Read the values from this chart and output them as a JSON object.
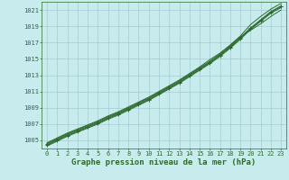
{
  "title": "Graphe pression niveau de la mer (hPa)",
  "bg_color": "#c8ecee",
  "grid_color": "#a0cdd0",
  "line_color": "#2d6a2d",
  "marker_color": "#2d6a2d",
  "ylim": [
    1004.0,
    1022.0
  ],
  "xlim": [
    -0.5,
    23.5
  ],
  "yticks": [
    1005,
    1007,
    1009,
    1011,
    1013,
    1015,
    1017,
    1019,
    1021
  ],
  "xticks": [
    0,
    1,
    2,
    3,
    4,
    5,
    6,
    7,
    8,
    9,
    10,
    11,
    12,
    13,
    14,
    15,
    16,
    17,
    18,
    19,
    20,
    21,
    22,
    23
  ],
  "series": [
    [
      1004.5,
      1005.1,
      1005.7,
      1006.2,
      1006.7,
      1007.2,
      1007.8,
      1008.3,
      1008.9,
      1009.5,
      1010.1,
      1010.8,
      1011.5,
      1012.2,
      1013.0,
      1013.8,
      1014.6,
      1015.5,
      1016.5,
      1017.6,
      1018.8,
      1019.8,
      1020.8,
      1021.5
    ],
    [
      1004.7,
      1005.3,
      1005.9,
      1006.4,
      1006.9,
      1007.4,
      1008.0,
      1008.5,
      1009.1,
      1009.7,
      1010.3,
      1011.0,
      1011.7,
      1012.4,
      1013.2,
      1014.0,
      1014.9,
      1015.7,
      1016.7,
      1017.8,
      1019.2,
      1020.2,
      1021.1,
      1021.8
    ],
    [
      1004.6,
      1005.2,
      1005.8,
      1006.3,
      1006.8,
      1007.3,
      1007.9,
      1008.4,
      1009.0,
      1009.6,
      1010.2,
      1010.9,
      1011.6,
      1012.3,
      1013.1,
      1013.9,
      1014.7,
      1015.6,
      1016.6,
      1017.7,
      1018.5,
      1019.3,
      1020.2,
      1021.0
    ],
    [
      1004.4,
      1005.0,
      1005.6,
      1006.1,
      1006.6,
      1007.1,
      1007.7,
      1008.2,
      1008.8,
      1009.4,
      1010.0,
      1010.7,
      1011.4,
      1012.1,
      1012.9,
      1013.7,
      1014.5,
      1015.4,
      1016.4,
      1017.5,
      1018.7,
      1019.7,
      1020.7,
      1021.4
    ],
    [
      1004.3,
      1004.9,
      1005.5,
      1006.0,
      1006.5,
      1007.0,
      1007.6,
      1008.1,
      1008.7,
      1009.3,
      1009.9,
      1010.6,
      1011.3,
      1012.0,
      1012.8,
      1013.6,
      1014.4,
      1015.3,
      1016.3,
      1017.4,
      1018.6,
      1019.6,
      1020.6,
      1021.3
    ]
  ],
  "marker_series": [
    0,
    3
  ],
  "title_fontsize": 6.5,
  "tick_fontsize": 5.0,
  "figwidth": 3.2,
  "figheight": 2.0,
  "dpi": 100
}
